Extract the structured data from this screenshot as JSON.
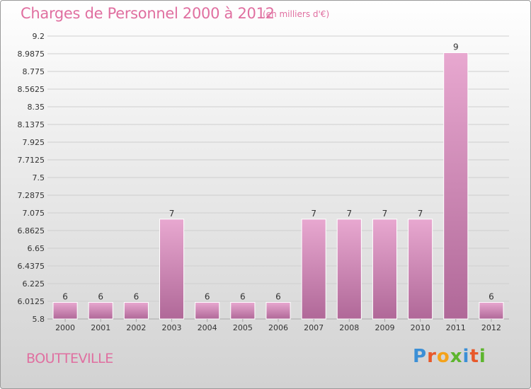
{
  "header": {
    "title": "Charges de Personnel 2000 à 2012",
    "unit": "(en milliers d'€)"
  },
  "footer": {
    "commune": "BOUTTEVILLE",
    "brand": "Proxiti",
    "brand_colors": [
      "#3b8fd6",
      "#e8582a",
      "#f4a21a",
      "#5db52e",
      "#3b8fd6",
      "#e8582a",
      "#5db52e"
    ]
  },
  "colors": {
    "title": "#e06fa0",
    "bar_top": "#e8a8d0",
    "bar_bottom": "#b06898",
    "grid": "#cfcfcf",
    "axis_text": "#333333"
  },
  "chart_data": {
    "type": "bar",
    "title": "Charges de Personnel 2000 à 2012",
    "subtitle": "(en milliers d'€)",
    "categories": [
      "2000",
      "2001",
      "2002",
      "2003",
      "2004",
      "2005",
      "2006",
      "2007",
      "2008",
      "2009",
      "2010",
      "2011",
      "2012"
    ],
    "values": [
      6,
      6,
      6,
      7,
      6,
      6,
      6,
      7,
      7,
      7,
      7,
      9,
      6
    ],
    "data_labels": [
      "6",
      "6",
      "6",
      "7",
      "6",
      "6",
      "6",
      "7",
      "7",
      "7",
      "7",
      "9",
      "6"
    ],
    "ylim": [
      5.8,
      9.2
    ],
    "yticks": [
      5.8,
      6.0125,
      6.225,
      6.4375,
      6.65,
      6.8625,
      7.075,
      7.2875,
      7.5,
      7.7125,
      7.925,
      8.1375,
      8.35,
      8.5625,
      8.775,
      8.9875,
      9.2
    ],
    "ytick_labels": [
      "5.8",
      "6.0125",
      "6.225",
      "6.4375",
      "6.65",
      "6.8625",
      "7.075",
      "7.2875",
      "7.5",
      "7.7125",
      "7.925",
      "8.1375",
      "8.35",
      "8.5625",
      "8.775",
      "8.9875",
      "9.2"
    ],
    "grid": true,
    "xlabel": "",
    "ylabel": ""
  }
}
